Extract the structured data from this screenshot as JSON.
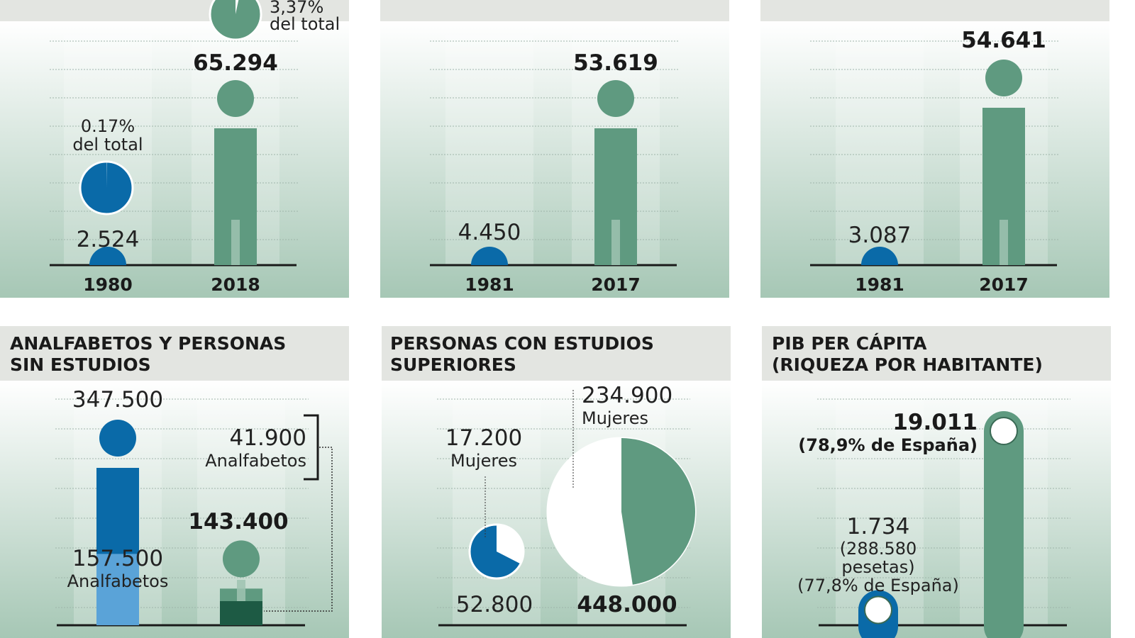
{
  "colors": {
    "green": "#5f9a80",
    "blue": "#0a6aa8",
    "light_blue": "#5aa3d8",
    "dark_green": "#1d5a44",
    "header": "#e3e5e1"
  },
  "chart_data": [
    {
      "type": "pictogram",
      "title": "",
      "categories": [
        "1980",
        "2018"
      ],
      "values": [
        2524,
        65294
      ],
      "shares": [
        "0.17%",
        "3,37%"
      ],
      "share_label": "del total",
      "value_labels": [
        "2.524",
        "65.294"
      ]
    },
    {
      "type": "pictogram",
      "title": "",
      "categories": [
        "1981",
        "2017"
      ],
      "values": [
        4450,
        53619
      ],
      "value_labels": [
        "4.450",
        "53.619"
      ]
    },
    {
      "type": "pictogram",
      "title": "",
      "categories": [
        "1981",
        "2017"
      ],
      "values": [
        3087,
        54641
      ],
      "value_labels": [
        "3.087",
        "54.641"
      ]
    },
    {
      "type": "pictogram",
      "title": "ANALFABETOS Y PERSONAS SIN ESTUDIOS",
      "title_lines": [
        "ANALFABETOS Y PERSONAS",
        "SIN ESTUDIOS"
      ],
      "values": [
        347500,
        143400
      ],
      "value_labels": [
        "347.500",
        "143.400"
      ],
      "sub_values": [
        157500,
        41900
      ],
      "sub_value_labels": [
        "157.500",
        "41.900"
      ],
      "sub_label": "Analfabetos"
    },
    {
      "type": "pie",
      "title": "PERSONAS CON ESTUDIOS SUPERIORES",
      "title_lines": [
        "PERSONAS CON ESTUDIOS",
        "SUPERIORES"
      ],
      "totals": [
        52800,
        448000
      ],
      "total_labels": [
        "52.800",
        "448.000"
      ],
      "women": [
        17200,
        234900
      ],
      "women_labels": [
        "17.200",
        "234.900"
      ],
      "women_label": "Mujeres"
    },
    {
      "type": "bar",
      "title": "PIB PER CÁPITA (RIQUEZA POR HABITANTE)",
      "title_lines": [
        "PIB PER CÁPITA",
        "(RIQUEZA POR HABITANTE)"
      ],
      "values": [
        1734,
        19011
      ],
      "value_labels": [
        "1.734",
        "19.011"
      ],
      "notes": [
        [
          "(288.580",
          "pesetas)",
          "(77,8% de España)"
        ],
        [
          "(78,9% de España)"
        ]
      ]
    }
  ]
}
